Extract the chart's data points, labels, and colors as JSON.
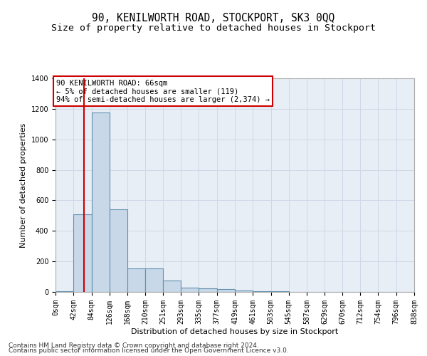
{
  "title": "90, KENILWORTH ROAD, STOCKPORT, SK3 0QQ",
  "subtitle": "Size of property relative to detached houses in Stockport",
  "xlabel": "Distribution of detached houses by size in Stockport",
  "ylabel": "Number of detached properties",
  "footnote1": "Contains HM Land Registry data © Crown copyright and database right 2024.",
  "footnote2": "Contains public sector information licensed under the Open Government Licence v3.0.",
  "bin_edges": [
    0,
    42,
    84,
    126,
    168,
    210,
    251,
    293,
    335,
    377,
    419,
    461,
    503,
    545,
    587,
    629,
    670,
    712,
    754,
    796,
    838
  ],
  "bin_labels": [
    "0sqm",
    "42sqm",
    "84sqm",
    "126sqm",
    "168sqm",
    "210sqm",
    "251sqm",
    "293sqm",
    "335sqm",
    "377sqm",
    "419sqm",
    "461sqm",
    "503sqm",
    "545sqm",
    "587sqm",
    "629sqm",
    "670sqm",
    "712sqm",
    "754sqm",
    "796sqm",
    "838sqm"
  ],
  "bar_heights": [
    5,
    510,
    1175,
    540,
    155,
    155,
    75,
    30,
    25,
    20,
    10,
    5,
    3,
    2,
    1,
    1,
    0,
    0,
    0,
    0
  ],
  "bar_color": "#c8d8e8",
  "bar_edge_color": "#6090b0",
  "bar_edge_width": 0.8,
  "red_line_x": 66,
  "annotation_title": "90 KENILWORTH ROAD: 66sqm",
  "annotation_line2": "← 5% of detached houses are smaller (119)",
  "annotation_line3": "94% of semi-detached houses are larger (2,374) →",
  "annotation_box_color": "#ffffff",
  "annotation_box_edge_color": "#cc0000",
  "red_line_color": "#cc0000",
  "ylim": [
    0,
    1400
  ],
  "xlim": [
    0,
    838
  ],
  "grid_color": "#d0d8e8",
  "background_color": "#e8eef5",
  "fig_background": "#ffffff",
  "title_fontsize": 10.5,
  "subtitle_fontsize": 9.5,
  "axis_label_fontsize": 8,
  "tick_fontsize": 7,
  "annotation_fontsize": 7.5,
  "footnote_fontsize": 6.5
}
